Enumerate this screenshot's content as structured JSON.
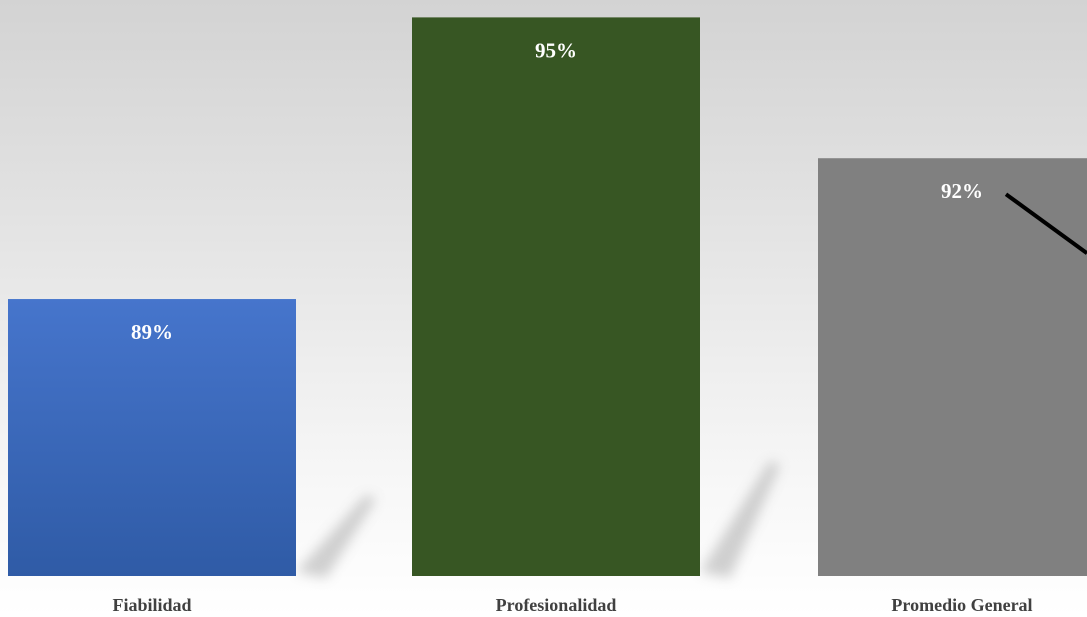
{
  "chart_data": {
    "type": "bar",
    "categories": [
      "Fiabilidad",
      "Profesionalidad",
      "Promedio General"
    ],
    "values": [
      89,
      95,
      92
    ],
    "value_labels": [
      "89%",
      "95%",
      "92%"
    ],
    "colors": [
      "#4472c4",
      "#375623",
      "#808080"
    ],
    "title": "",
    "xlabel": "",
    "ylabel": "",
    "ylim": [
      83.1,
      95.2
    ],
    "grid": false,
    "legend": "none"
  }
}
